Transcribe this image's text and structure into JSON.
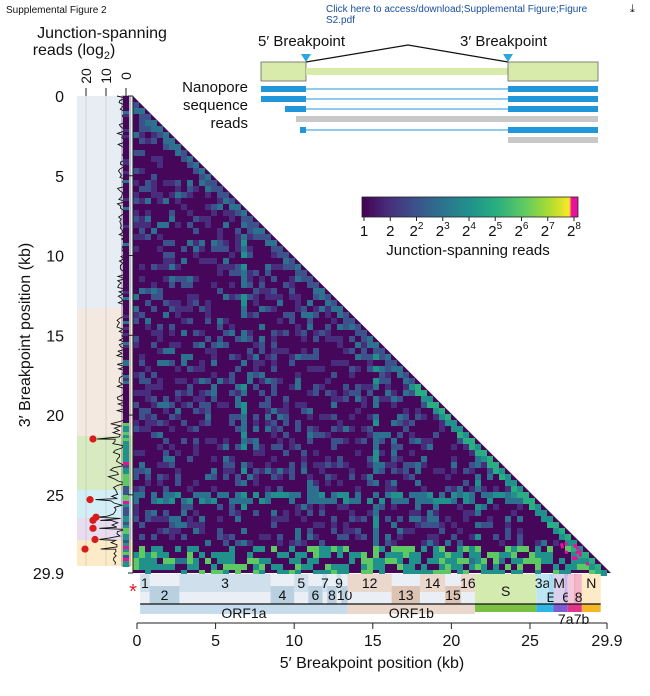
{
  "header": {
    "left_title": "Supplemental Figure 2",
    "link_text_line1": "Click here to access/download;Supplemental Figure;Figure",
    "link_text_line2": "S2.pdf",
    "download_icon": "download-arrow-icon"
  },
  "chart_data": {
    "type": "heatmap",
    "title": "",
    "xlabel": "5′ Breakpoint position (kb)",
    "ylabel": "3′ Breakpoint position (kb)",
    "xlim": [
      0,
      29.9
    ],
    "ylim": [
      0,
      29.9
    ],
    "x_ticks": [
      "0",
      "5",
      "10",
      "15",
      "20",
      "25",
      "29.9"
    ],
    "x_tick_values": [
      0,
      5,
      10,
      15,
      20,
      25,
      29.9
    ],
    "y_ticks": [
      "0",
      "5",
      "10",
      "15",
      "20",
      "25",
      "29.9"
    ],
    "y_tick_values": [
      0,
      5,
      10,
      15,
      20,
      25,
      29.9
    ],
    "side_panel": {
      "label_line1": "Junction-spanning",
      "label_line2": "reads (log",
      "label_sub": "2",
      "label_close": ")",
      "ticks": [
        "20",
        "10",
        "0"
      ],
      "tick_values": [
        20,
        10,
        0
      ],
      "red_point_positions_kb": [
        21.5,
        25.3,
        26.4,
        26.6,
        27.1,
        27.8,
        28.4
      ]
    },
    "colorbar": {
      "label": "Junction-spanning reads",
      "tick_bases": [
        "1",
        "2",
        "2",
        "2",
        "2",
        "2",
        "2",
        "2",
        "2"
      ],
      "tick_exponents": [
        "",
        "",
        "2",
        "3",
        "4",
        "5",
        "6",
        "7",
        "8"
      ],
      "colors": [
        "#440154",
        "#472d7b",
        "#3b528b",
        "#2c728e",
        "#21918c",
        "#28ae80",
        "#5ec962",
        "#addc30",
        "#fde725",
        "#e8119c"
      ]
    },
    "inset": {
      "left_label": "5′ Breakpoint",
      "right_label": "3′ Breakpoint",
      "reads_label_line1": "Nanopore",
      "reads_label_line2": "sequence",
      "reads_label_line3": "reads"
    },
    "nsp_labels": [
      {
        "label": "1",
        "start": 0.2,
        "end": 0.8
      },
      {
        "label": "2",
        "start": 0.8,
        "end": 2.7
      },
      {
        "label": "3",
        "start": 2.7,
        "end": 8.5
      },
      {
        "label": "4",
        "start": 8.5,
        "end": 10.0
      },
      {
        "label": "5",
        "start": 10.0,
        "end": 10.9
      },
      {
        "label": "6",
        "start": 10.9,
        "end": 11.8
      },
      {
        "label": "7",
        "start": 11.8,
        "end": 12.1
      },
      {
        "label": "8",
        "start": 12.1,
        "end": 12.7
      },
      {
        "label": "9",
        "start": 12.7,
        "end": 13.0
      },
      {
        "label": "10",
        "start": 13.0,
        "end": 13.4
      },
      {
        "label": "12",
        "start": 13.4,
        "end": 16.2
      },
      {
        "label": "13",
        "start": 16.2,
        "end": 18.0
      },
      {
        "label": "14",
        "start": 18.0,
        "end": 19.6
      },
      {
        "label": "15",
        "start": 19.6,
        "end": 20.6
      },
      {
        "label": "16",
        "start": 20.6,
        "end": 21.5
      }
    ],
    "structural_labels": [
      {
        "label": "S",
        "start": 21.5,
        "end": 25.4
      },
      {
        "label": "3a",
        "start": 25.4,
        "end": 26.2
      },
      {
        "label": "E",
        "start": 26.2,
        "end": 26.5
      },
      {
        "label": "M",
        "start": 26.5,
        "end": 27.2
      },
      {
        "label": "6",
        "start": 27.2,
        "end": 27.4
      },
      {
        "label": "7a",
        "start": 27.4,
        "end": 27.8
      },
      {
        "label": "7b",
        "start": 27.8,
        "end": 27.9
      },
      {
        "label": "8",
        "start": 27.9,
        "end": 28.3
      },
      {
        "label": "N",
        "start": 28.3,
        "end": 29.5
      }
    ],
    "orf_labels": [
      {
        "label": "ORF1a",
        "start": 0.2,
        "end": 13.4
      },
      {
        "label": "ORF1b",
        "start": 13.4,
        "end": 21.5
      }
    ],
    "asterisk": "*"
  }
}
